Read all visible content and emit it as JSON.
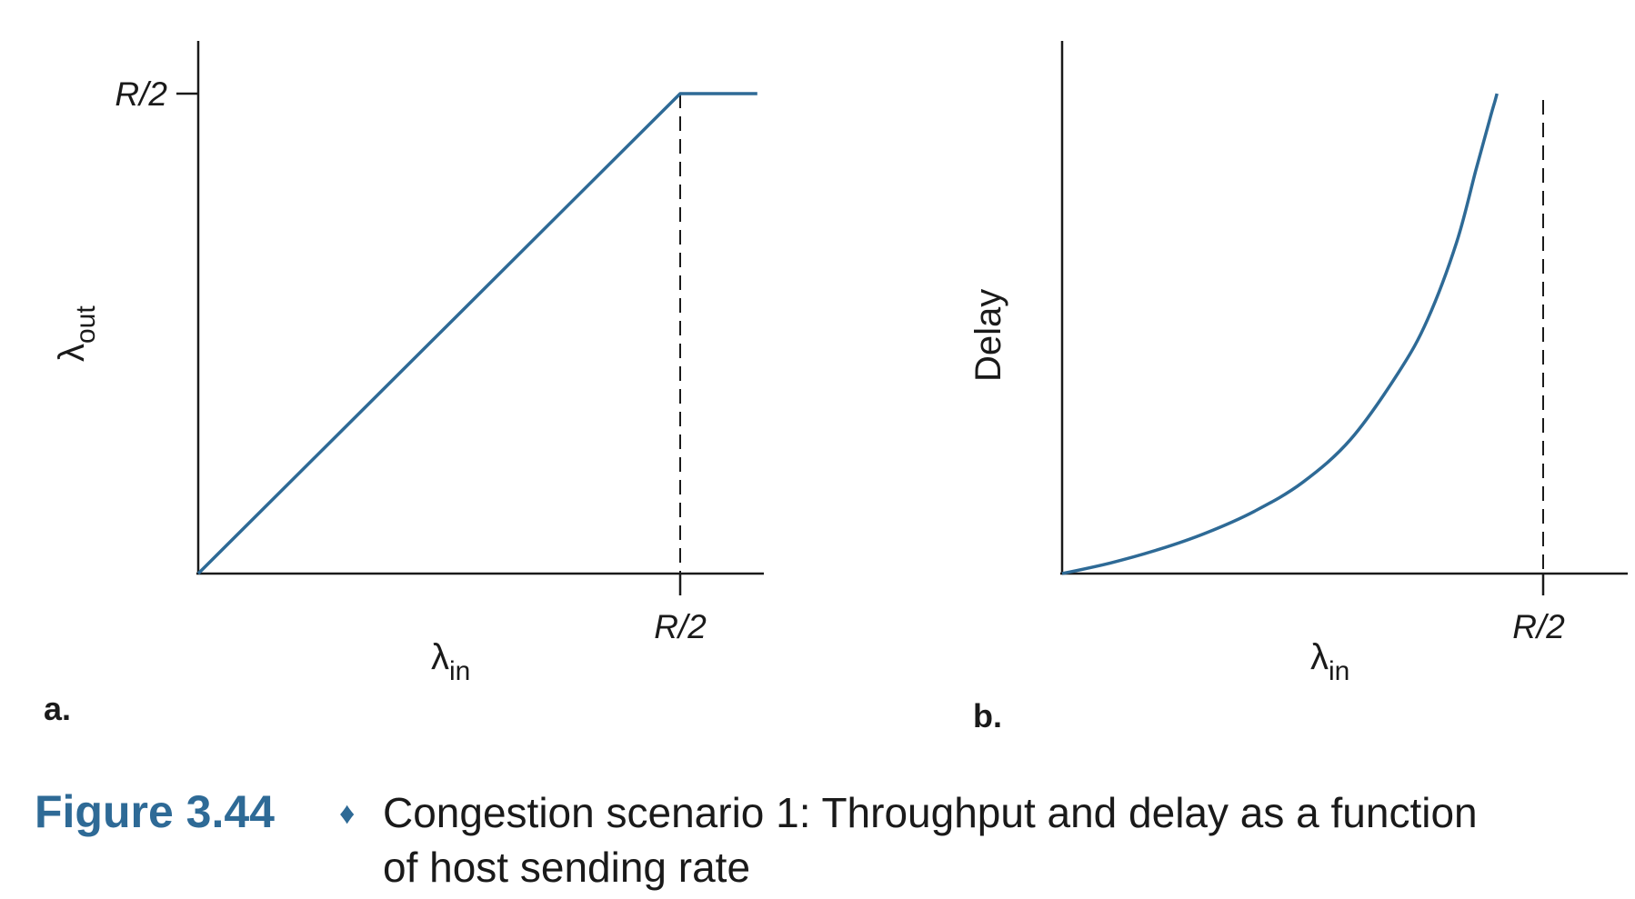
{
  "chart_data": [
    {
      "type": "line",
      "panel_label": "a.",
      "xlabel": "λ",
      "xlabel_sub": "in",
      "ylabel": "λ",
      "ylabel_sub": "out",
      "x_ticks": [
        "R/2"
      ],
      "y_ticks": [
        "R/2"
      ],
      "xlim": [
        0,
        0.585
      ],
      "ylim": [
        0,
        0.55
      ],
      "series": [
        {
          "x": [
            0,
            0.5,
            0.58
          ],
          "y": [
            0,
            0.5,
            0.5
          ]
        }
      ],
      "reference_lines": [
        {
          "orientation": "vertical",
          "x": 0.5,
          "style": "dashed"
        }
      ],
      "grid": false
    },
    {
      "type": "line",
      "panel_label": "b.",
      "xlabel": "λ",
      "xlabel_sub": "in",
      "ylabel": "Delay",
      "x_ticks": [
        "R/2"
      ],
      "xlim": [
        0,
        0.59
      ],
      "ylim": [
        0,
        1
      ],
      "series": [
        {
          "x": [
            0,
            0.05,
            0.1,
            0.15,
            0.2,
            0.25,
            0.3,
            0.35,
            0.38,
            0.41,
            0.43,
            0.445,
            0.45,
            0.452
          ],
          "y": [
            0,
            0.022,
            0.05,
            0.085,
            0.13,
            0.19,
            0.28,
            0.42,
            0.53,
            0.69,
            0.84,
            0.95,
            0.985,
            1.0
          ]
        }
      ],
      "reference_lines": [
        {
          "orientation": "vertical",
          "x": 0.5,
          "style": "dashed"
        }
      ],
      "grid": false
    }
  ],
  "caption": {
    "label": "Figure 3.44",
    "separator": "♦",
    "line1": "Congestion scenario 1: Throughput and delay as a function",
    "line2": "of host sending rate"
  },
  "colors": {
    "curve": "#2e6a96",
    "caption_label": "#2e6a96",
    "axis": "#1a1a1a"
  }
}
